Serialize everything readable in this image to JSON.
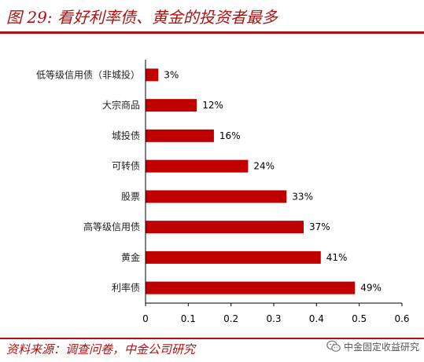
{
  "title": "图 29: 看好利率债、黄金的投资者最多",
  "source": "资料来源：调查问卷，中金公司研究",
  "watermark": "中金固定收益研究",
  "colors": {
    "accent": "#b0100f",
    "bar": "#c00000"
  },
  "chart_data": {
    "type": "bar",
    "orientation": "horizontal",
    "categories": [
      "低等级信用债（非城投）",
      "大宗商品",
      "城投债",
      "可转债",
      "股票",
      "高等级信用债",
      "黄金",
      "利率债"
    ],
    "values": [
      0.03,
      0.12,
      0.16,
      0.24,
      0.33,
      0.37,
      0.41,
      0.49
    ],
    "data_labels": [
      "3%",
      "12%",
      "16%",
      "24%",
      "33%",
      "37%",
      "41%",
      "49%"
    ],
    "xlim": [
      0,
      0.6
    ],
    "xticks": [
      0,
      0.1,
      0.2,
      0.3,
      0.4,
      0.5,
      0.6
    ],
    "xtick_labels": [
      "0",
      "0.1",
      "0.2",
      "0.3",
      "0.4",
      "0.5",
      "0.6"
    ],
    "grid": false,
    "legend": "none"
  }
}
